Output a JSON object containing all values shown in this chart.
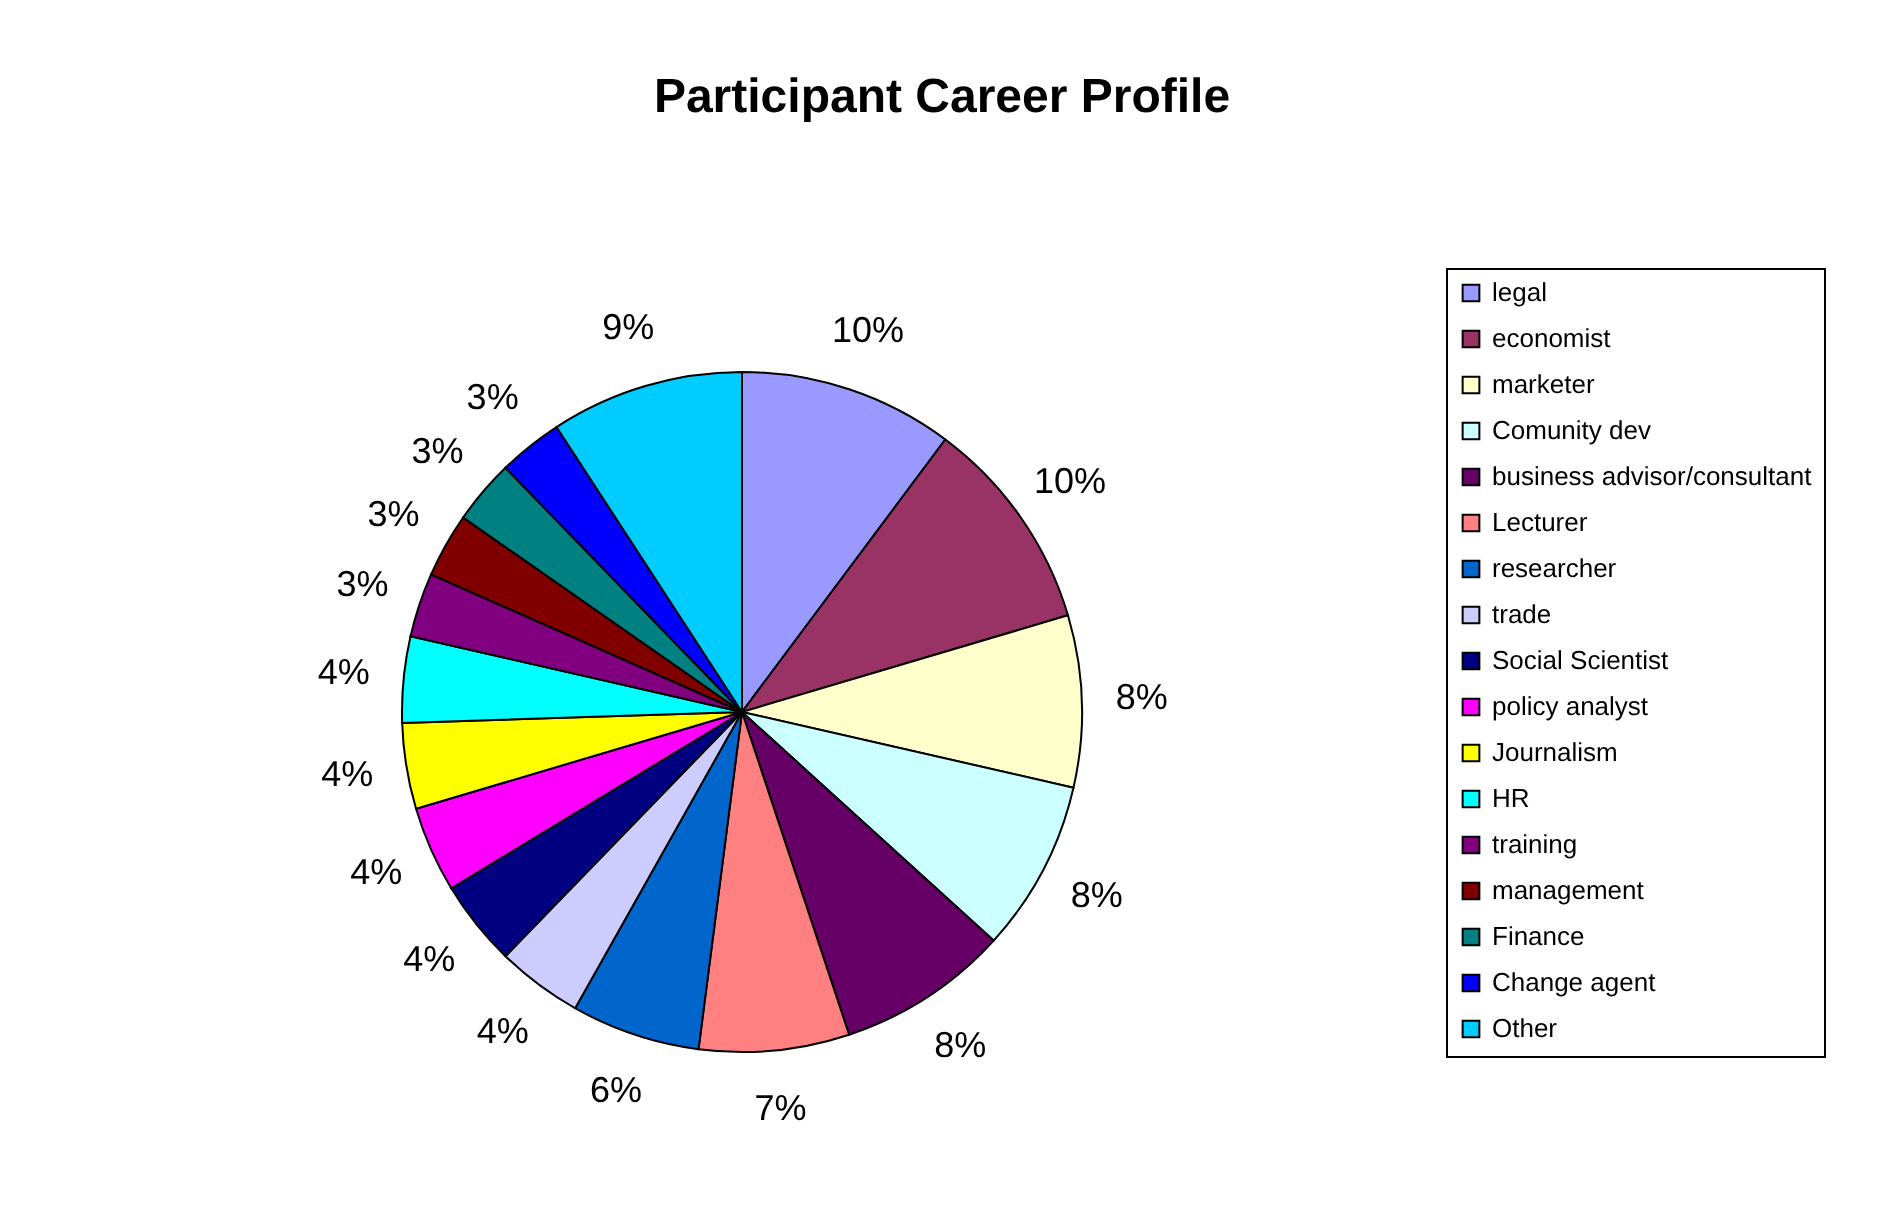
{
  "chart_data": {
    "type": "pie",
    "title": "Participant Career Profile",
    "categories": [
      "legal",
      "economist",
      "marketer",
      "Comunity dev",
      "business advisor/consultant",
      "Lecturer",
      "researcher",
      "trade",
      "Social Scientist",
      "policy analyst",
      "Journalism",
      "HR",
      "training",
      "management",
      "Finance",
      "Change agent",
      "Other"
    ],
    "values": [
      10,
      10,
      8,
      8,
      8,
      7,
      6,
      4,
      4,
      4,
      4,
      4,
      3,
      3,
      3,
      3,
      9
    ],
    "colors": [
      "#9999ff",
      "#993366",
      "#ffffcc",
      "#ccffff",
      "#660066",
      "#ff8080",
      "#0066cc",
      "#ccccff",
      "#000080",
      "#ff00ff",
      "#ffff00",
      "#00ffff",
      "#800080",
      "#800000",
      "#008080",
      "#0000ff",
      "#00ccff"
    ],
    "value_labels": [
      "10%",
      "10%",
      "8%",
      "8%",
      "8%",
      "7%",
      "6%",
      "4%",
      "4%",
      "4%",
      "4%",
      "4%",
      "3%",
      "3%",
      "3%",
      "3%",
      "9%"
    ],
    "legend": "right"
  }
}
